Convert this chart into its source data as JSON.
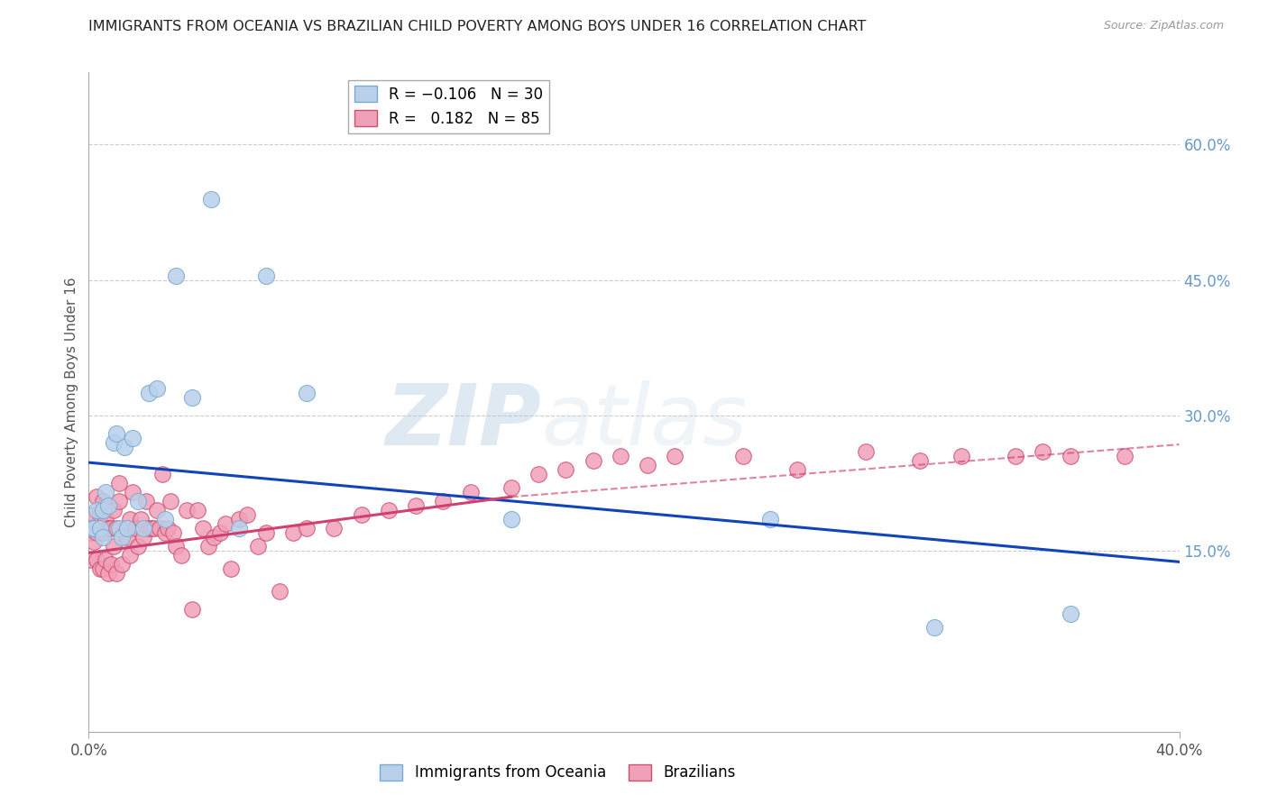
{
  "title": "IMMIGRANTS FROM OCEANIA VS BRAZILIAN CHILD POVERTY AMONG BOYS UNDER 16 CORRELATION CHART",
  "source": "Source: ZipAtlas.com",
  "ylabel": "Child Poverty Among Boys Under 16",
  "yticks": [
    "60.0%",
    "45.0%",
    "30.0%",
    "15.0%"
  ],
  "ytick_vals": [
    0.6,
    0.45,
    0.3,
    0.15
  ],
  "xlim": [
    0.0,
    0.4
  ],
  "ylim": [
    -0.05,
    0.68
  ],
  "watermark_zip": "ZIP",
  "watermark_atlas": "atlas",
  "series_oceania": {
    "color": "#b8d0ea",
    "edge_color": "#7aaad0",
    "x": [
      0.001,
      0.002,
      0.003,
      0.004,
      0.005,
      0.005,
      0.006,
      0.007,
      0.009,
      0.01,
      0.011,
      0.012,
      0.013,
      0.014,
      0.016,
      0.018,
      0.02,
      0.022,
      0.025,
      0.028,
      0.032,
      0.038,
      0.045,
      0.055,
      0.065,
      0.08,
      0.155,
      0.25,
      0.31,
      0.36
    ],
    "y": [
      0.175,
      0.175,
      0.195,
      0.175,
      0.195,
      0.165,
      0.215,
      0.2,
      0.27,
      0.28,
      0.175,
      0.165,
      0.265,
      0.175,
      0.275,
      0.205,
      0.175,
      0.325,
      0.33,
      0.185,
      0.455,
      0.32,
      0.54,
      0.175,
      0.455,
      0.325,
      0.185,
      0.185,
      0.065,
      0.08
    ]
  },
  "series_brazilians": {
    "color": "#f0a0b8",
    "edge_color": "#d05070",
    "x": [
      0.001,
      0.001,
      0.002,
      0.002,
      0.003,
      0.003,
      0.003,
      0.004,
      0.004,
      0.005,
      0.005,
      0.005,
      0.006,
      0.006,
      0.007,
      0.007,
      0.008,
      0.008,
      0.009,
      0.009,
      0.01,
      0.01,
      0.011,
      0.011,
      0.012,
      0.013,
      0.014,
      0.015,
      0.015,
      0.016,
      0.017,
      0.018,
      0.019,
      0.02,
      0.021,
      0.022,
      0.023,
      0.024,
      0.025,
      0.026,
      0.027,
      0.028,
      0.029,
      0.03,
      0.031,
      0.032,
      0.034,
      0.036,
      0.038,
      0.04,
      0.042,
      0.044,
      0.046,
      0.048,
      0.05,
      0.052,
      0.055,
      0.058,
      0.062,
      0.065,
      0.07,
      0.075,
      0.08,
      0.09,
      0.1,
      0.11,
      0.12,
      0.13,
      0.14,
      0.155,
      0.165,
      0.175,
      0.185,
      0.195,
      0.205,
      0.215,
      0.24,
      0.26,
      0.285,
      0.305,
      0.32,
      0.34,
      0.35,
      0.36,
      0.38
    ],
    "y": [
      0.14,
      0.17,
      0.16,
      0.19,
      0.14,
      0.17,
      0.21,
      0.13,
      0.19,
      0.13,
      0.17,
      0.205,
      0.14,
      0.185,
      0.125,
      0.175,
      0.135,
      0.175,
      0.155,
      0.195,
      0.125,
      0.175,
      0.205,
      0.225,
      0.135,
      0.17,
      0.165,
      0.145,
      0.185,
      0.215,
      0.175,
      0.155,
      0.185,
      0.165,
      0.205,
      0.175,
      0.175,
      0.175,
      0.195,
      0.175,
      0.235,
      0.17,
      0.175,
      0.205,
      0.17,
      0.155,
      0.145,
      0.195,
      0.085,
      0.195,
      0.175,
      0.155,
      0.165,
      0.17,
      0.18,
      0.13,
      0.185,
      0.19,
      0.155,
      0.17,
      0.105,
      0.17,
      0.175,
      0.175,
      0.19,
      0.195,
      0.2,
      0.205,
      0.215,
      0.22,
      0.235,
      0.24,
      0.25,
      0.255,
      0.245,
      0.255,
      0.255,
      0.24,
      0.26,
      0.25,
      0.255,
      0.255,
      0.26,
      0.255,
      0.255
    ]
  },
  "trend_oceania": {
    "x_start": 0.0,
    "x_end": 0.4,
    "y_start": 0.248,
    "y_end": 0.138,
    "color": "#1144bb"
  },
  "trend_brazilians_solid": {
    "x_start": 0.0,
    "x_end": 0.155,
    "y_start": 0.148,
    "y_end": 0.21,
    "color": "#d04070"
  },
  "trend_brazilians_dashed": {
    "x_start": 0.155,
    "x_end": 0.4,
    "y_start": 0.21,
    "y_end": 0.268,
    "color": "#d04070"
  },
  "background_color": "#ffffff",
  "grid_color": "#cccccc",
  "title_color": "#222222",
  "axis_label_color": "#555555",
  "right_axis_label_color": "#6699cc"
}
